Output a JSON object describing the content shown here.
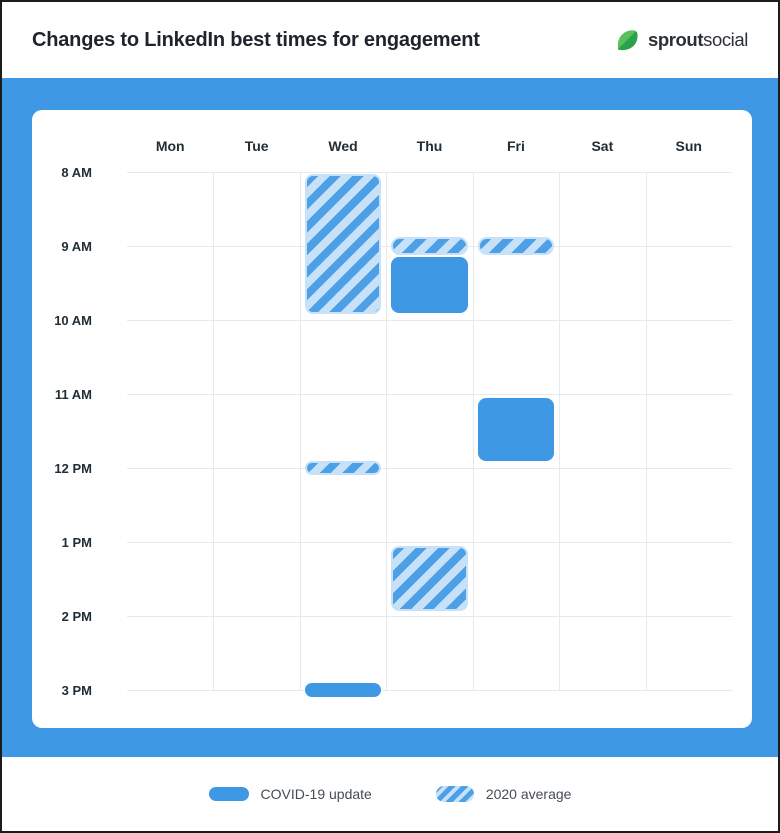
{
  "header": {
    "title": "Changes to LinkedIn best times for engagement",
    "brand": {
      "bold": "sprout",
      "regular": "social",
      "leaf_light": "#59c15c",
      "leaf_dark": "#2aa24c"
    }
  },
  "chart_data": {
    "type": "heatmap",
    "title": "Changes to LinkedIn best times for engagement",
    "columns": [
      "Mon",
      "Tue",
      "Wed",
      "Thu",
      "Fri",
      "Sat",
      "Sun"
    ],
    "row_labels": [
      "8 AM",
      "9 AM",
      "10 AM",
      "11 AM",
      "12 PM",
      "1 PM",
      "2 PM",
      "3 PM"
    ],
    "axis": {
      "start_hour": 8,
      "end_hour": 15,
      "grid": true
    },
    "legend_position": "bottom",
    "series": [
      {
        "name": "COVID-19 update",
        "style": "solid",
        "blocks": [
          {
            "day": "Thu",
            "day_index": 3,
            "start": 9.15,
            "end": 9.9
          },
          {
            "day": "Fri",
            "day_index": 4,
            "start": 11.05,
            "end": 11.9
          },
          {
            "day": "Wed",
            "day_index": 2,
            "start": 14.9,
            "end": 15.1,
            "marker": true
          }
        ]
      },
      {
        "name": "2020 average",
        "style": "hatched",
        "blocks": [
          {
            "day": "Wed",
            "day_index": 2,
            "start": 8.03,
            "end": 9.92
          },
          {
            "day": "Thu",
            "day_index": 3,
            "start": 8.88,
            "end": 9.12,
            "marker": true
          },
          {
            "day": "Fri",
            "day_index": 4,
            "start": 8.88,
            "end": 9.12,
            "marker": true
          },
          {
            "day": "Wed",
            "day_index": 2,
            "start": 11.9,
            "end": 12.1,
            "marker": true
          },
          {
            "day": "Thu",
            "day_index": 3,
            "start": 13.05,
            "end": 13.93
          }
        ]
      }
    ]
  },
  "legend": {
    "items": [
      {
        "label": "COVID-19 update",
        "style": "solid"
      },
      {
        "label": "2020 average",
        "style": "hatched"
      }
    ]
  },
  "colors": {
    "accent_blue": "#3e98e3",
    "hatch_dark": "#4d9fe6",
    "hatch_light": "#c7e2f8",
    "grid_line": "#e7eaec",
    "title_text": "#1d242b",
    "label_text": "#222e36",
    "legend_text": "#454c54"
  }
}
